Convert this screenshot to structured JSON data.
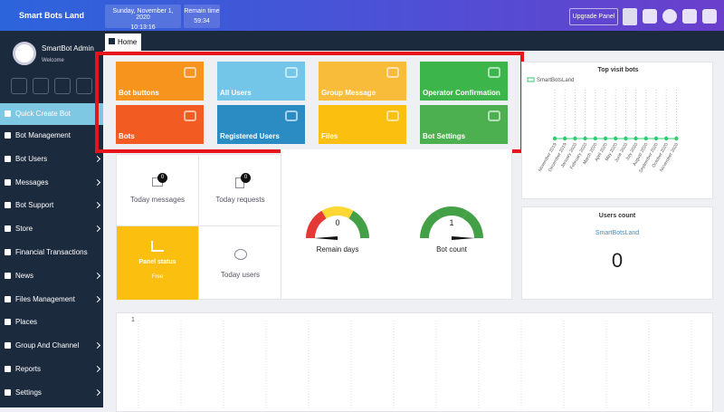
{
  "header": {
    "brand": "Smart Bots Land",
    "date": "Sunday, November 1, 2020",
    "time": "10:13:16",
    "remain_label": "Remain time",
    "remain_value": "59:34",
    "upgrade": "Upgrade Panel"
  },
  "sidebar": {
    "user": "SmartBot Admin",
    "welcome": "Welcome",
    "menu": [
      "Quick Create Bot",
      "Bot Management",
      "Bot Users",
      "Messages",
      "Bot Support",
      "Store",
      "Financial Transactions",
      "News",
      "Files Management",
      "Places",
      "Group And Channel",
      "Reports",
      "Settings"
    ]
  },
  "tab": "Home",
  "tiles": [
    {
      "label": "Bot buttons",
      "color": "#f7941d"
    },
    {
      "label": "All Users",
      "color": "#74c6e8"
    },
    {
      "label": "Group Message",
      "color": "#f9bc3a"
    },
    {
      "label": "Operator Confirmation",
      "color": "#3cb64a"
    },
    {
      "label": "Bots",
      "color": "#f25c22"
    },
    {
      "label": "Registered Users",
      "color": "#2b8cc4"
    },
    {
      "label": "Files",
      "color": "#fbbf0f"
    },
    {
      "label": "Bot Settings",
      "color": "#4caf50"
    }
  ],
  "stats": {
    "today_messages": {
      "count": 0,
      "label": "Today messages"
    },
    "today_requests": {
      "count": 0,
      "label": "Today requests"
    },
    "panel_status": {
      "label": "Panel status",
      "value": "Free"
    },
    "today_users": {
      "label": "Today users"
    }
  },
  "gauges": [
    {
      "value": 0,
      "label": "Remain days"
    },
    {
      "value": 1,
      "label": "Bot count"
    }
  ],
  "top_visit": {
    "title": "Top visit bots",
    "legend": "SmartBotsLand",
    "months": [
      "November 2019",
      "December 2019",
      "January 2020",
      "February 2020",
      "March 2020",
      "April 2020",
      "May 2020",
      "June 2020",
      "July 2020",
      "August 2020",
      "September 2020",
      "October 2020",
      "November 2020"
    ]
  },
  "users_count": {
    "title": "Users count",
    "subtitle": "SmartBotsLand",
    "value": 0
  },
  "bottom_chart": {
    "axis_label": "1"
  }
}
